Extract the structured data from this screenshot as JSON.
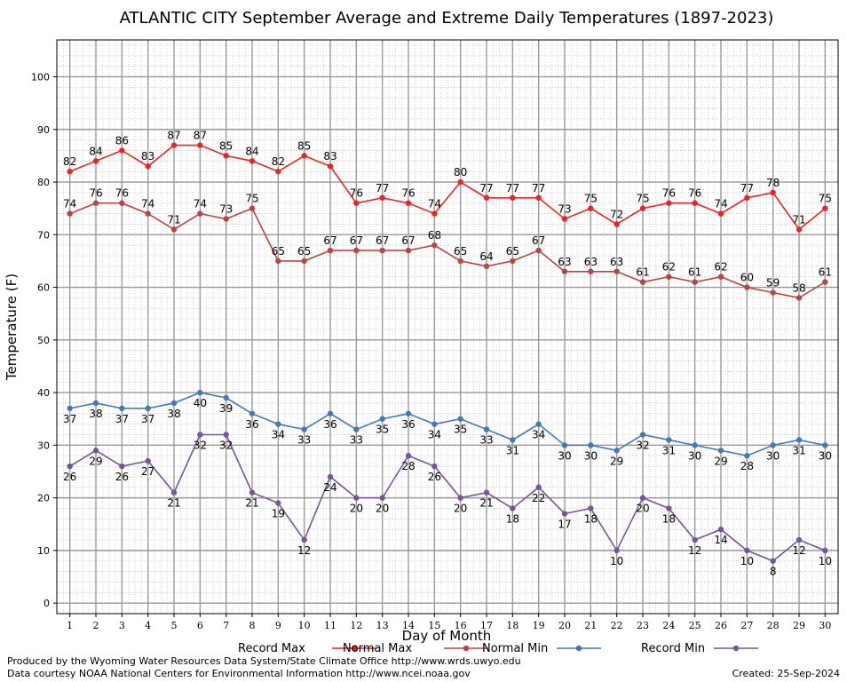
{
  "chart_data": {
    "type": "line",
    "title": "ATLANTIC CITY September Average and Extreme Daily Temperatures (1897-2023)",
    "xlabel": "Day of Month",
    "ylabel": "Temperature (F)",
    "x": [
      1,
      2,
      3,
      4,
      5,
      6,
      7,
      8,
      9,
      10,
      11,
      12,
      13,
      14,
      15,
      16,
      17,
      18,
      19,
      20,
      21,
      22,
      23,
      24,
      25,
      26,
      27,
      28,
      29,
      30
    ],
    "xlim": [
      0.5,
      30.5
    ],
    "ylim": [
      -2,
      107
    ],
    "yticks": [
      0,
      10,
      20,
      30,
      40,
      50,
      60,
      70,
      80,
      90,
      100
    ],
    "grid": true,
    "legend_position": "bottom",
    "series": [
      {
        "name": "Record Max",
        "color": "#ee2222",
        "values": [
          82,
          84,
          86,
          83,
          87,
          87,
          85,
          84,
          82,
          85,
          83,
          76,
          77,
          76,
          74,
          80,
          77,
          77,
          77,
          73,
          75,
          72,
          75,
          76,
          76,
          74,
          77,
          78,
          71,
          75
        ],
        "label_pos": "above"
      },
      {
        "name": "Normal Max",
        "color": "#bb4444",
        "values": [
          74,
          76,
          76,
          74,
          71,
          74,
          73,
          75,
          65,
          65,
          67,
          67,
          67,
          67,
          68,
          65,
          64,
          65,
          67,
          63,
          63,
          63,
          61,
          62,
          61,
          62,
          60,
          59,
          58,
          61
        ],
        "label_pos": "above"
      },
      {
        "name": "Normal Min",
        "color": "#4477bb",
        "values": [
          37,
          38,
          37,
          37,
          38,
          40,
          39,
          36,
          34,
          33,
          36,
          33,
          35,
          36,
          34,
          35,
          33,
          31,
          34,
          30,
          30,
          29,
          32,
          31,
          30,
          29,
          28,
          30,
          31,
          30
        ],
        "label_pos": "below"
      },
      {
        "name": "Record Min",
        "color": "#775599",
        "values": [
          26,
          29,
          26,
          27,
          21,
          32,
          32,
          21,
          19,
          12,
          24,
          20,
          20,
          28,
          26,
          20,
          21,
          18,
          22,
          17,
          18,
          10,
          20,
          18,
          12,
          14,
          10,
          8,
          12,
          10
        ],
        "label_pos": "below"
      }
    ]
  },
  "footer": {
    "credit_line1": "Produced by the Wyoming Water Resources Data System/State Climate Office http://www.wrds.uwyo.edu",
    "credit_line2": "Data courtesy NOAA National Centers for Environmental Information http://www.ncei.noaa.gov",
    "created": "Created:  25-Sep-2024"
  }
}
